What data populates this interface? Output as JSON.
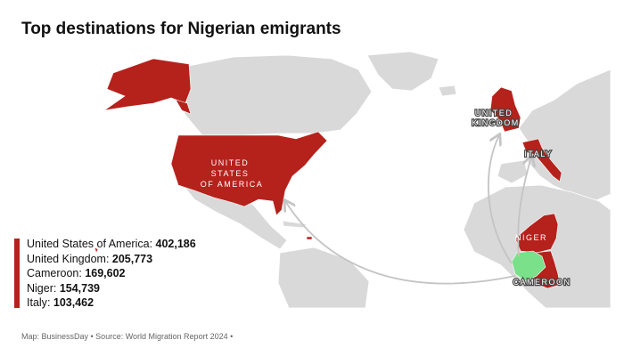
{
  "title": "Top destinations for Nigerian emigrants",
  "colors": {
    "ocean": "#ffffff",
    "land": "#d9d9d9",
    "highlight": "#b5211b",
    "origin": "#7ae08a",
    "arrow": "#c4c4c4"
  },
  "map_labels": {
    "usa": [
      "UNITED",
      "STATES",
      "OF AMERICA"
    ],
    "uk": [
      "UNITED",
      "KINGDOM"
    ],
    "italy": "ITALY",
    "niger": "NIGER",
    "cameroon": "CAMEROON"
  },
  "legend": [
    {
      "country": "United States of America",
      "value": "402,186"
    },
    {
      "country": "United Kingdom",
      "value": "205,773"
    },
    {
      "country": "Cameroon",
      "value": "169,602"
    },
    {
      "country": "Niger",
      "value": "154,739"
    },
    {
      "country": "Italy",
      "value": "103,462"
    }
  ],
  "footer": "Map: BusinessDay • Source: World Migration Report 2024 •"
}
